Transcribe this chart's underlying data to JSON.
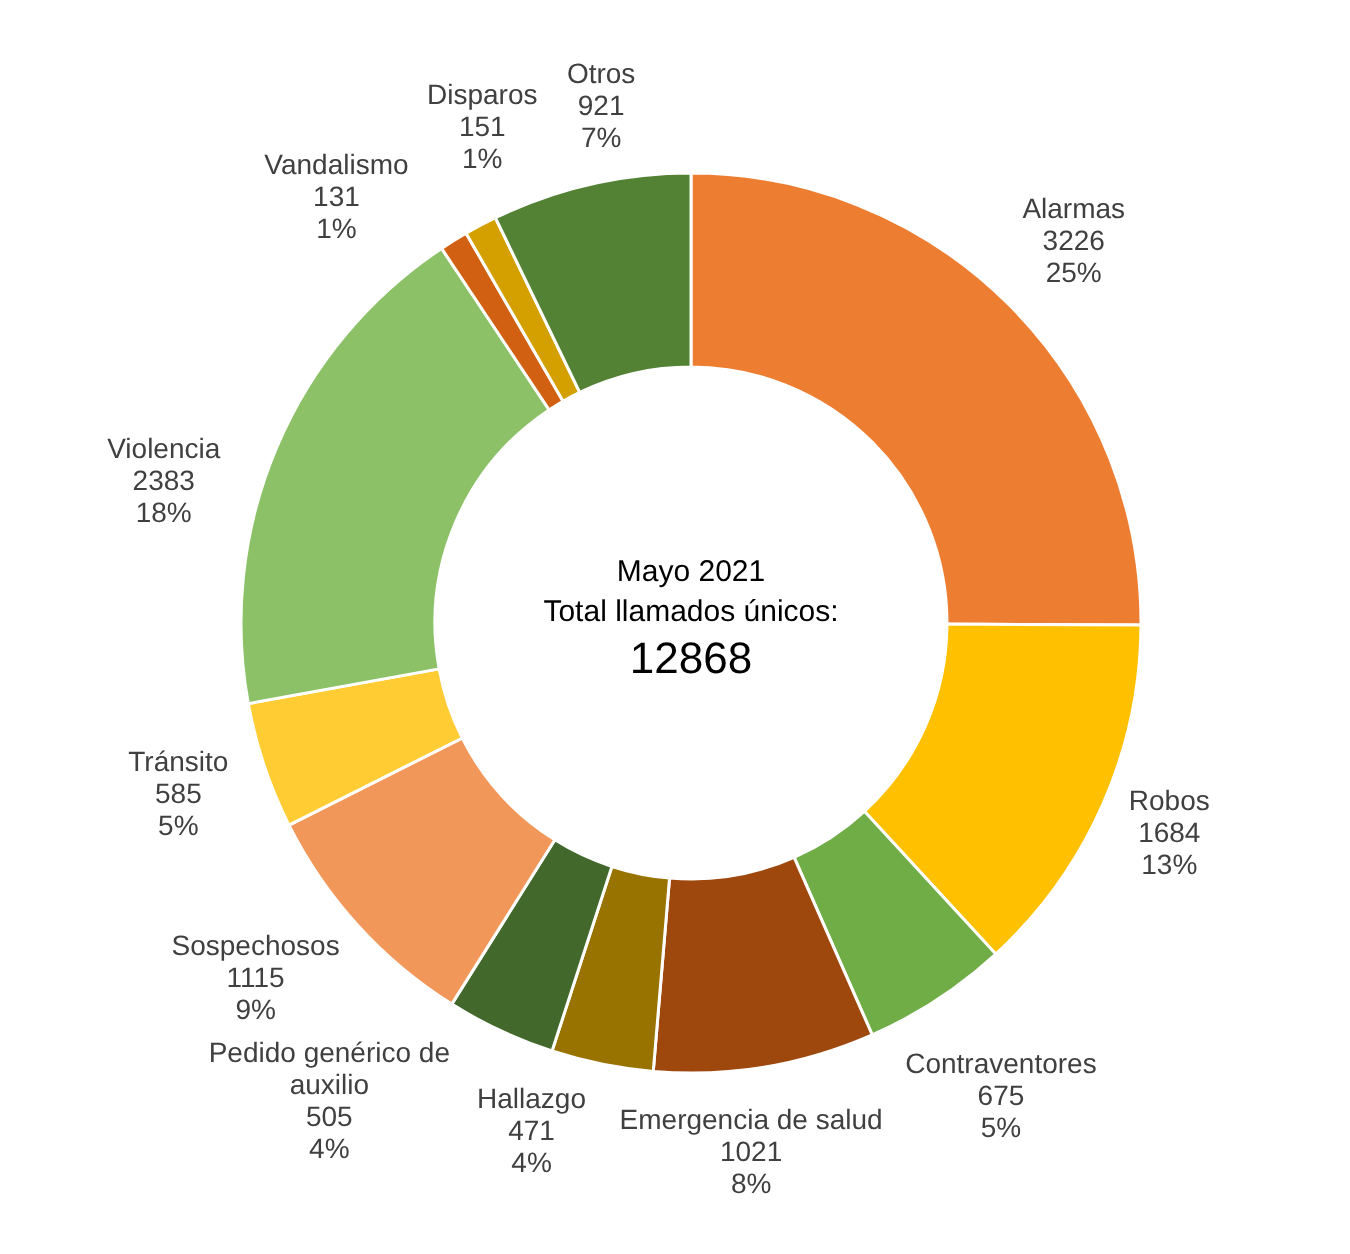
{
  "chart_data": {
    "type": "donut",
    "categories": [
      "Alarmas",
      "Robos",
      "Contraventores",
      "Emergencia de salud",
      "Hallazgo",
      "Pedido genérico de auxilio",
      "Sospechosos",
      "Tránsito",
      "Violencia",
      "Vandalismo",
      "Disparos",
      "Otros"
    ],
    "values": [
      3226,
      1684,
      675,
      1021,
      471,
      505,
      1115,
      585,
      2383,
      131,
      151,
      921
    ],
    "value_labels": [
      "3226\n25%",
      "1684\n13%",
      "675\n5%",
      "1021\n8%",
      "471\n4%",
      "505\n4%",
      "1115\n9%",
      "585\n5%",
      "2383\n18%",
      "131\n1%",
      "151\n1%",
      "921\n7%"
    ],
    "colors": [
      "#ed7d31",
      "#ffc000",
      "#70ad47",
      "#9e480e",
      "#997300",
      "#43682b",
      "#f1975a",
      "#ffcd33",
      "#8cc168",
      "#d26012",
      "#d4a000",
      "#548235"
    ],
    "annotations": [
      "Mayo 2021",
      "Total llamados únicos:",
      "12868"
    ]
  }
}
